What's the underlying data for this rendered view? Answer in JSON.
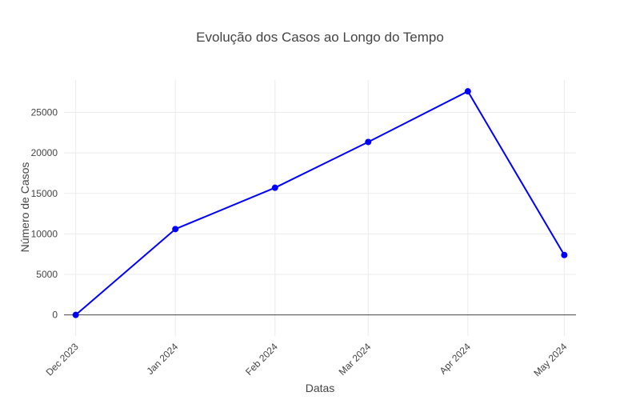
{
  "chart_data": {
    "type": "line",
    "title": "Evolução dos Casos ao Longo do Tempo",
    "xlabel": "Datas",
    "ylabel": "Número de Casos",
    "x": [
      "Dec 2023",
      "Jan 2024",
      "Feb 2024",
      "Mar 2024",
      "Apr 2024",
      "May 2024"
    ],
    "x_dates": [
      "2023-12-01",
      "2024-01-01",
      "2024-02-01",
      "2024-03-01",
      "2024-04-01",
      "2024-05-01"
    ],
    "series": [
      {
        "values": [
          0,
          10600,
          15700,
          21350,
          27600,
          7400
        ]
      }
    ],
    "yticks": [
      0,
      5000,
      10000,
      15000,
      20000,
      25000
    ],
    "ylim": [
      -2600,
      29000
    ],
    "grid": true,
    "color": "#0000ff"
  }
}
